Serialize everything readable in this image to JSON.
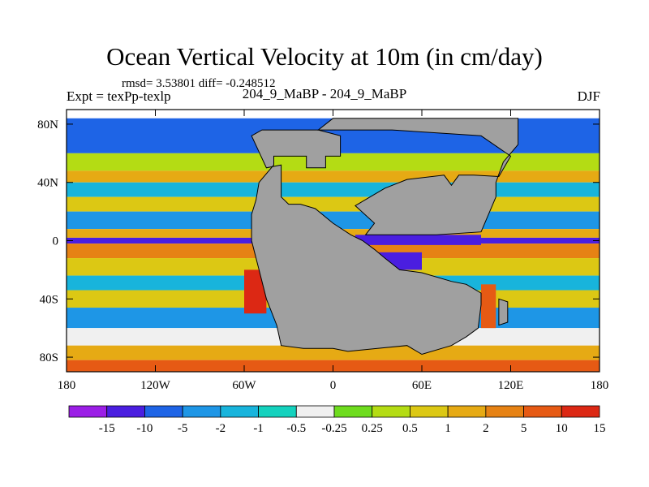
{
  "chart_data": {
    "type": "heatmap",
    "title": "Ocean Vertical Velocity at 10m (in cm/day)",
    "stats": "rmsd= 3.53801 diff= -0.248512",
    "left_label": "Expt = texPp-texlp",
    "center_label": "204_9_MaBP - 204_9_MaBP",
    "right_label": "DJF",
    "x_ticks": [
      "180",
      "120W",
      "60W",
      "0",
      "60E",
      "120E",
      "180"
    ],
    "y_ticks": [
      "80N",
      "40N",
      "0",
      "40S",
      "80S"
    ],
    "x_range": [
      -180,
      180
    ],
    "y_range": [
      -90,
      90
    ],
    "colorbar_labels": [
      "-15",
      "-10",
      "-5",
      "-2",
      "-1",
      "-0.5",
      "-0.25",
      "0.25",
      "0.5",
      "1",
      "2",
      "5",
      "10",
      "15"
    ],
    "colors": [
      "#9b1ee6",
      "#4a1ee0",
      "#1e64e6",
      "#1e96e6",
      "#18b4dc",
      "#14d2be",
      "#f0f0f0",
      "#6edc1e",
      "#b4dc14",
      "#dcc814",
      "#e6aa14",
      "#e68214",
      "#e65a14",
      "#dc2814"
    ],
    "land_color": "#a0a0a0",
    "bands": [
      {
        "lat": [
          60,
          84
        ],
        "class": 2
      },
      {
        "lat": [
          48,
          60
        ],
        "class": 8
      },
      {
        "lat": [
          40,
          48
        ],
        "class": 10
      },
      {
        "lat": [
          30,
          40
        ],
        "class": 4
      },
      {
        "lat": [
          20,
          30
        ],
        "class": 9
      },
      {
        "lat": [
          8,
          20
        ],
        "class": 3
      },
      {
        "lat": [
          2,
          8
        ],
        "class": 10
      },
      {
        "lat": [
          -2,
          2
        ],
        "class": 1
      },
      {
        "lat": [
          -12,
          -2
        ],
        "class": 11
      },
      {
        "lat": [
          -24,
          -12
        ],
        "class": 9
      },
      {
        "lat": [
          -34,
          -24
        ],
        "class": 4
      },
      {
        "lat": [
          -46,
          -34
        ],
        "class": 9
      },
      {
        "lat": [
          -60,
          -46
        ],
        "class": 3
      },
      {
        "lat": [
          -72,
          -60
        ],
        "class": 6
      },
      {
        "lat": [
          -82,
          -72
        ],
        "class": 10
      },
      {
        "lat": [
          -90,
          -82
        ],
        "class": 12
      }
    ],
    "land": [
      {
        "name": "western-supercontinent",
        "points": [
          [
            -55,
            72
          ],
          [
            -48,
            76
          ],
          [
            -10,
            76
          ],
          [
            5,
            72
          ],
          [
            5,
            58
          ],
          [
            -5,
            58
          ],
          [
            -5,
            50
          ],
          [
            -18,
            50
          ],
          [
            -18,
            58
          ],
          [
            -40,
            58
          ],
          [
            -40,
            52
          ],
          [
            -50,
            40
          ],
          [
            -52,
            28
          ],
          [
            -55,
            18
          ],
          [
            -55,
            0
          ],
          [
            -50,
            -20
          ],
          [
            -45,
            -40
          ],
          [
            -38,
            -58
          ],
          [
            -35,
            -72
          ],
          [
            -20,
            -74
          ],
          [
            0,
            -74
          ],
          [
            10,
            -76
          ],
          [
            30,
            -74
          ],
          [
            50,
            -72
          ],
          [
            60,
            -78
          ],
          [
            80,
            -72
          ],
          [
            90,
            -66
          ],
          [
            98,
            -60
          ],
          [
            100,
            -44
          ],
          [
            100,
            -36
          ],
          [
            90,
            -30
          ],
          [
            80,
            -28
          ],
          [
            60,
            -22
          ],
          [
            45,
            -20
          ],
          [
            35,
            -12
          ],
          [
            28,
            -6
          ],
          [
            20,
            0
          ],
          [
            12,
            4
          ],
          [
            0,
            12
          ],
          [
            -12,
            22
          ],
          [
            -22,
            25
          ],
          [
            -30,
            25
          ],
          [
            -35,
            30
          ],
          [
            -35,
            52
          ],
          [
            -45,
            50
          ]
        ]
      },
      {
        "name": "northern-continent",
        "points": [
          [
            -10,
            76
          ],
          [
            0,
            84
          ],
          [
            50,
            84
          ],
          [
            90,
            84
          ],
          [
            110,
            84
          ],
          [
            125,
            84
          ],
          [
            125,
            66
          ],
          [
            115,
            54
          ],
          [
            110,
            40
          ],
          [
            110,
            30
          ],
          [
            100,
            6
          ],
          [
            70,
            4
          ],
          [
            40,
            4
          ],
          [
            22,
            4
          ],
          [
            28,
            12
          ],
          [
            15,
            24
          ],
          [
            25,
            30
          ],
          [
            35,
            36
          ],
          [
            50,
            42
          ],
          [
            75,
            45
          ],
          [
            80,
            38
          ],
          [
            85,
            45
          ],
          [
            95,
            45
          ],
          [
            112,
            44
          ],
          [
            120,
            58
          ],
          [
            100,
            72
          ],
          [
            40,
            76
          ]
        ]
      },
      {
        "name": "southern-island",
        "points": [
          [
            112,
            -40
          ],
          [
            118,
            -42
          ],
          [
            118,
            -56
          ],
          [
            112,
            -58
          ]
        ]
      }
    ],
    "extremes": [
      {
        "name": "equatorial-upwelling",
        "lon": [
          20,
          95
        ],
        "lat": [
          -1,
          2
        ],
        "class": 0
      },
      {
        "name": "equatorial-strip",
        "lon": [
          15,
          100
        ],
        "lat": [
          -3,
          4
        ],
        "class": 1
      },
      {
        "name": "coastal-upwelling",
        "lon": [
          22,
          60
        ],
        "lat": [
          -20,
          -8
        ],
        "class": 1
      },
      {
        "name": "west-coast-maximum",
        "lon": [
          -60,
          -45
        ],
        "lat": [
          -50,
          -20
        ],
        "class": 13
      },
      {
        "name": "east-coast-maximum",
        "lon": [
          100,
          110
        ],
        "lat": [
          -60,
          -30
        ],
        "class": 12
      }
    ]
  }
}
